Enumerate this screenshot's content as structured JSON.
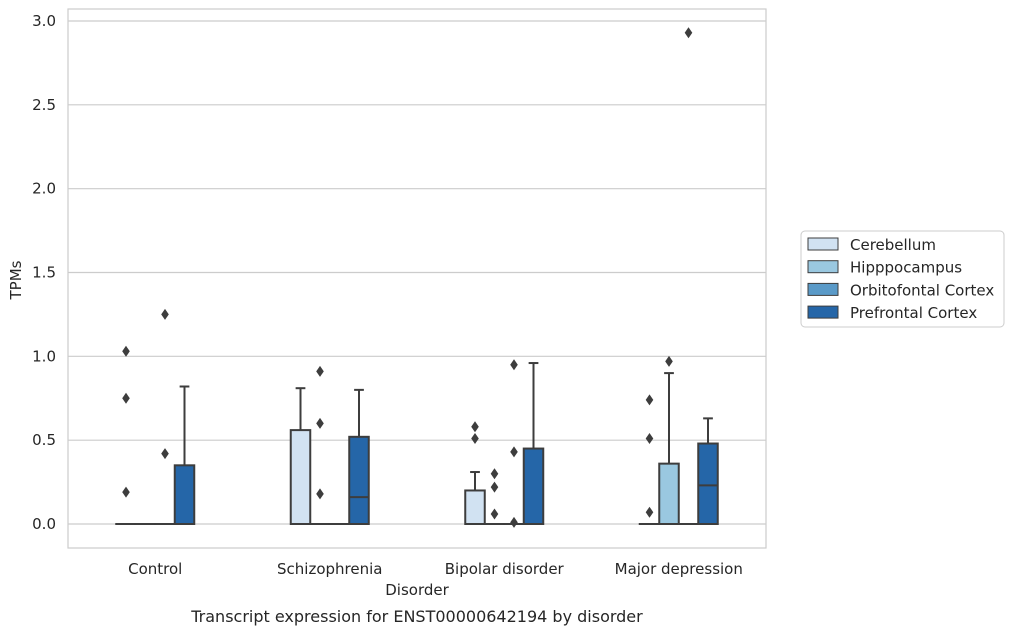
{
  "chart_data": {
    "type": "box",
    "title": "",
    "caption": "Transcript expression for ENST00000642194 by disorder",
    "xlabel": "Disorder",
    "ylabel": "TPMs",
    "categories": [
      "Control",
      "Schizophrenia",
      "Bipolar disorder",
      "Major depression"
    ],
    "yticks": [
      "0.0",
      "0.5",
      "1.0",
      "1.5",
      "2.0",
      "2.5",
      "3.0"
    ],
    "ytick_values": [
      0,
      0.5,
      1.0,
      1.5,
      2.0,
      2.5,
      3.0
    ],
    "ylim": [
      -0.14,
      3.08
    ],
    "grid": true,
    "legend_position": "center-right-outside",
    "series": [
      {
        "name": "Cerebellum",
        "color": "#d1e2f2",
        "boxes": [
          {
            "q1": 0,
            "median": 0,
            "q3": 0,
            "whisker_low": 0,
            "whisker_high": 0,
            "outliers": [
              0.19,
              0.75,
              1.03
            ]
          },
          {
            "q1": 0,
            "median": 0,
            "q3": 0.56,
            "whisker_low": 0,
            "whisker_high": 0.81,
            "outliers": []
          },
          {
            "q1": 0,
            "median": 0,
            "q3": 0.2,
            "whisker_low": 0,
            "whisker_high": 0.31,
            "outliers": [
              0.51,
              0.58
            ]
          },
          {
            "q1": 0,
            "median": 0,
            "q3": 0,
            "whisker_low": 0,
            "whisker_high": 0,
            "outliers": [
              0.07,
              0.51,
              0.74
            ]
          }
        ]
      },
      {
        "name": "Hipppocampus",
        "color": "#9ac8e0",
        "boxes": [
          {
            "q1": 0,
            "median": 0,
            "q3": 0,
            "whisker_low": 0,
            "whisker_high": 0,
            "outliers": []
          },
          {
            "q1": 0,
            "median": 0,
            "q3": 0,
            "whisker_low": 0,
            "whisker_high": 0,
            "outliers": [
              0.18,
              0.6,
              0.91
            ]
          },
          {
            "q1": 0,
            "median": 0,
            "q3": 0,
            "whisker_low": 0,
            "whisker_high": 0,
            "outliers": [
              0.06,
              0.22,
              0.3
            ]
          },
          {
            "q1": 0,
            "median": 0,
            "q3": 0.36,
            "whisker_low": 0,
            "whisker_high": 0.9,
            "outliers": [
              0.97
            ]
          }
        ]
      },
      {
        "name": "Orbitofontal Cortex",
        "color": "#5a9ac8",
        "boxes": [
          {
            "q1": 0,
            "median": 0,
            "q3": 0,
            "whisker_low": 0,
            "whisker_high": 0,
            "outliers": [
              0.42,
              1.25
            ]
          },
          {
            "q1": 0,
            "median": 0,
            "q3": 0,
            "whisker_low": 0,
            "whisker_high": 0,
            "outliers": []
          },
          {
            "q1": 0,
            "median": 0,
            "q3": 0,
            "whisker_low": 0,
            "whisker_high": 0,
            "outliers": [
              0.01,
              0.43,
              0.95
            ]
          },
          {
            "q1": 0,
            "median": 0,
            "q3": 0,
            "whisker_low": 0,
            "whisker_high": 0,
            "outliers": [
              2.93
            ]
          }
        ]
      },
      {
        "name": "Prefrontal Cortex",
        "color": "#2566a8",
        "boxes": [
          {
            "q1": 0,
            "median": 0,
            "q3": 0.35,
            "whisker_low": 0,
            "whisker_high": 0.82,
            "outliers": []
          },
          {
            "q1": 0,
            "median": 0.16,
            "q3": 0.52,
            "whisker_low": 0,
            "whisker_high": 0.8,
            "outliers": []
          },
          {
            "q1": 0,
            "median": 0,
            "q3": 0.45,
            "whisker_low": 0,
            "whisker_high": 0.96,
            "outliers": []
          },
          {
            "q1": 0,
            "median": 0.23,
            "q3": 0.48,
            "whisker_low": 0,
            "whisker_high": 0.63,
            "outliers": []
          }
        ]
      }
    ]
  }
}
